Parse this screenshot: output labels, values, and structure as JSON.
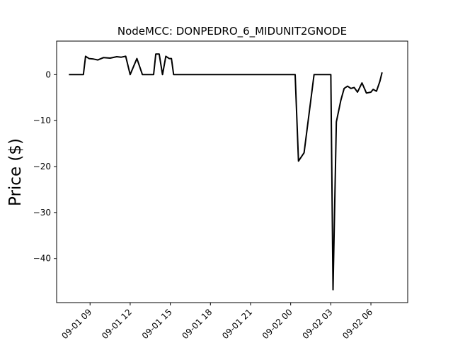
{
  "chart_data": {
    "type": "line",
    "title": "NodeMCC: DONPEDRO_6_MIDUNIT2GNODE",
    "xlabel": "",
    "ylabel": "Price ($)",
    "grid": false,
    "legend": "none",
    "x_axis_type": "datetime",
    "xlim": [
      "2023-09-01 06:30",
      "2023-09-02 08:45"
    ],
    "ylim": [
      -49.6,
      7.3
    ],
    "yticks": [
      0,
      -10,
      -20,
      -30,
      -40
    ],
    "ytick_labels": [
      "0",
      "−10",
      "−20",
      "−30",
      "−40"
    ],
    "xticks": [
      "2023-09-01 09:00",
      "2023-09-01 12:00",
      "2023-09-01 15:00",
      "2023-09-01 18:00",
      "2023-09-01 21:00",
      "2023-09-02 00:00",
      "2023-09-02 03:00",
      "2023-09-02 06:00"
    ],
    "xtick_labels": [
      "09-01 09",
      "09-01 12",
      "09-01 15",
      "09-01 18",
      "09-01 21",
      "09-02 00",
      "09-02 03",
      "09-02 06"
    ],
    "series": [
      {
        "color": "#000000",
        "x": [
          "2023-09-01 07:25",
          "2023-09-01 07:45",
          "2023-09-01 08:30",
          "2023-09-01 08:40",
          "2023-09-01 08:55",
          "2023-09-01 09:15",
          "2023-09-01 09:35",
          "2023-09-01 10:00",
          "2023-09-01 10:30",
          "2023-09-01 11:00",
          "2023-09-01 11:20",
          "2023-09-01 11:40",
          "2023-09-01 12:00",
          "2023-09-01 12:30",
          "2023-09-01 12:55",
          "2023-09-01 13:45",
          "2023-09-01 13:55",
          "2023-09-01 14:10",
          "2023-09-01 14:25",
          "2023-09-01 14:40",
          "2023-09-01 14:55",
          "2023-09-01 15:05",
          "2023-09-01 15:15",
          "2023-09-01 15:35",
          "2023-09-01 15:50",
          "2023-09-02 00:20",
          "2023-09-02 00:35",
          "2023-09-02 01:00",
          "2023-09-02 01:45",
          "2023-09-02 02:15",
          "2023-09-02 02:40",
          "2023-09-02 03:00",
          "2023-09-02 03:10",
          "2023-09-02 03:25",
          "2023-09-02 03:45",
          "2023-09-02 04:00",
          "2023-09-02 04:15",
          "2023-09-02 04:30",
          "2023-09-02 04:45",
          "2023-09-02 05:00",
          "2023-09-02 05:20",
          "2023-09-02 05:40",
          "2023-09-02 06:00",
          "2023-09-02 06:10",
          "2023-09-02 06:25",
          "2023-09-02 06:40",
          "2023-09-02 06:50"
        ],
        "y": [
          0,
          0,
          0,
          4.0,
          3.5,
          3.4,
          3.2,
          3.7,
          3.6,
          3.9,
          3.8,
          4.0,
          0,
          3.5,
          0,
          0,
          4.5,
          4.5,
          0,
          4.0,
          3.5,
          3.5,
          0,
          0,
          0,
          0,
          -18.8,
          -17.0,
          0,
          0,
          0,
          0,
          -46.8,
          -10.3,
          -5.6,
          -3.0,
          -2.5,
          -3.0,
          -2.8,
          -3.8,
          -1.8,
          -4.0,
          -3.8,
          -3.2,
          -3.6,
          -1.5,
          0.5
        ]
      }
    ]
  }
}
